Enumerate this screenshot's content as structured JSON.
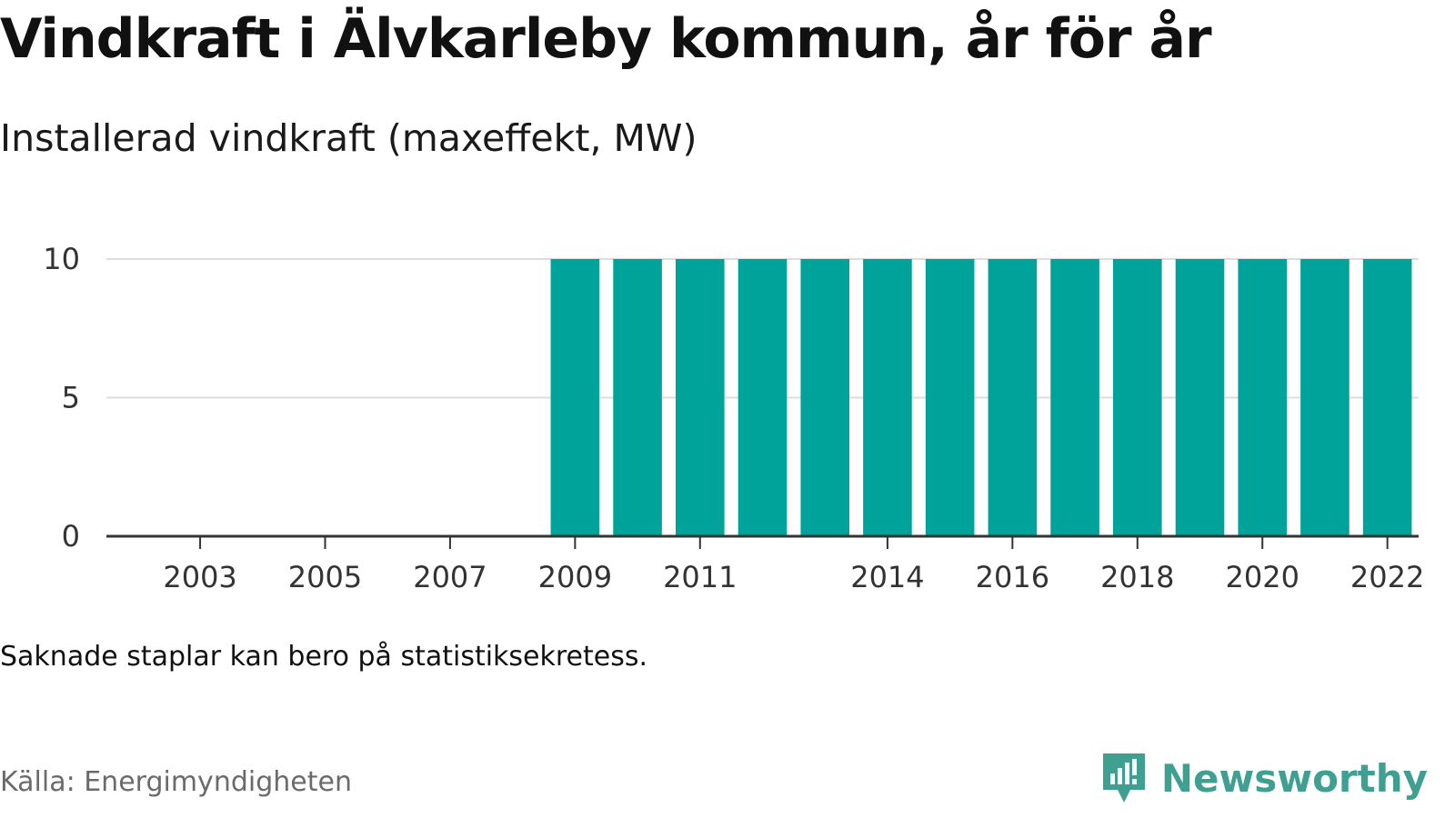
{
  "title": "Vindkraft i Älvkarleby kommun, år för år",
  "subtitle": "Installerad vindkraft (maxeffekt, MW)",
  "note": "Saknade staplar kan bero på statistiksekretess.",
  "source": "Källa: Energimyndigheten",
  "brand": {
    "name": "Newsworthy",
    "logo_icon": "newsworthy-logo-icon",
    "color": "#3f9f91"
  },
  "chart_data": {
    "type": "bar",
    "categories": [
      "2002",
      "2003",
      "2004",
      "2005",
      "2006",
      "2007",
      "2008",
      "2009",
      "2010",
      "2011",
      "2012",
      "2013",
      "2014",
      "2015",
      "2016",
      "2017",
      "2018",
      "2019",
      "2020",
      "2021",
      "2022"
    ],
    "values": [
      0,
      0,
      0,
      0,
      0,
      0,
      0,
      10,
      10,
      10,
      10,
      10,
      10,
      10,
      10,
      10,
      10,
      10,
      10,
      10,
      10
    ],
    "x_tick_labels": [
      "2003",
      "2005",
      "2007",
      "2009",
      "2011",
      "2014",
      "2016",
      "2018",
      "2020",
      "2022"
    ],
    "y_ticks": [
      0,
      5,
      10
    ],
    "ylim": [
      0,
      10
    ],
    "xlabel": "",
    "ylabel": "",
    "bar_color": "#00a39a",
    "grid": true
  }
}
